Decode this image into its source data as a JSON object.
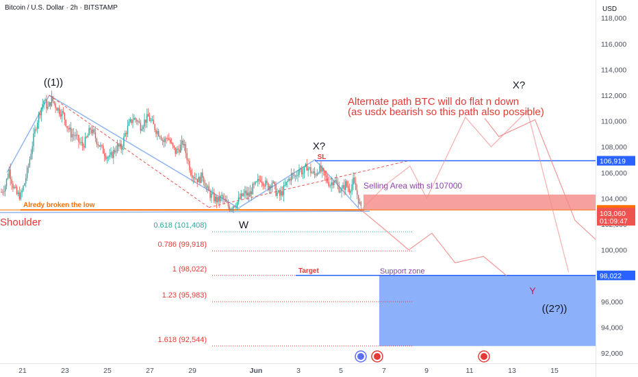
{
  "header": {
    "title": "Bitcoin / U.S. Dollar · 2h · BITSTAMP",
    "currency": "USD"
  },
  "chart_data": {
    "type": "candlestick",
    "symbol": "Bitcoin / U.S. Dollar",
    "interval": "2h",
    "exchange": "BITSTAMP",
    "ylim": [
      91000,
      119000
    ],
    "y_ticks": [
      92000,
      94000,
      96000,
      98000,
      100000,
      102000,
      104000,
      106000,
      108000,
      110000,
      112000,
      114000,
      116000,
      118000
    ],
    "y_tick_labels": [
      "92,000",
      "94,000",
      "96,000",
      "98,000",
      "100,000",
      "102,000",
      "104,000",
      "106,000",
      "108,000",
      "110,000",
      "112,000",
      "114,000",
      "116,000",
      "118,000"
    ],
    "x_tick_labels": [
      "21",
      "23",
      "25",
      "27",
      "29",
      "Jun",
      "3",
      "5",
      "7",
      "9",
      "11",
      "13",
      "15"
    ],
    "close_path": [
      [
        0,
        104500
      ],
      [
        3,
        105000
      ],
      [
        6,
        106200
      ],
      [
        9,
        105000
      ],
      [
        12,
        104300
      ],
      [
        15,
        104200
      ],
      [
        18,
        105200
      ],
      [
        21,
        106500
      ],
      [
        24,
        108200
      ],
      [
        27,
        109700
      ],
      [
        30,
        110800
      ],
      [
        33,
        111600
      ],
      [
        36,
        111000
      ],
      [
        39,
        111700
      ],
      [
        42,
        111200
      ],
      [
        45,
        110800
      ],
      [
        48,
        110500
      ],
      [
        51,
        109600
      ],
      [
        54,
        109000
      ],
      [
        57,
        108900
      ],
      [
        60,
        108400
      ],
      [
        63,
        108100
      ],
      [
        66,
        108600
      ],
      [
        69,
        109400
      ],
      [
        72,
        108900
      ],
      [
        75,
        108300
      ],
      [
        78,
        107800
      ],
      [
        81,
        107400
      ],
      [
        84,
        107100
      ],
      [
        87,
        107600
      ],
      [
        90,
        108000
      ],
      [
        93,
        107900
      ],
      [
        96,
        109000
      ],
      [
        99,
        109700
      ],
      [
        102,
        110200
      ],
      [
        105,
        110100
      ],
      [
        108,
        109600
      ],
      [
        111,
        110000
      ],
      [
        114,
        110300
      ],
      [
        117,
        109800
      ],
      [
        120,
        109300
      ],
      [
        123,
        109000
      ],
      [
        126,
        108400
      ],
      [
        129,
        108800
      ],
      [
        132,
        108100
      ],
      [
        135,
        107600
      ],
      [
        138,
        107900
      ],
      [
        141,
        108300
      ],
      [
        144,
        107200
      ],
      [
        147,
        106100
      ],
      [
        150,
        105700
      ],
      [
        153,
        105400
      ],
      [
        156,
        105800
      ],
      [
        159,
        104800
      ],
      [
        162,
        104300
      ],
      [
        165,
        104000
      ],
      [
        168,
        103800
      ],
      [
        171,
        104100
      ],
      [
        174,
        103600
      ],
      [
        177,
        103300
      ],
      [
        180,
        103500
      ],
      [
        183,
        103700
      ],
      [
        186,
        104100
      ],
      [
        189,
        104400
      ],
      [
        192,
        104200
      ],
      [
        195,
        104800
      ],
      [
        198,
        105100
      ],
      [
        201,
        105600
      ],
      [
        204,
        105200
      ],
      [
        207,
        104900
      ],
      [
        210,
        105300
      ],
      [
        213,
        104500
      ],
      [
        216,
        104200
      ],
      [
        219,
        104700
      ],
      [
        222,
        105300
      ],
      [
        225,
        105800
      ],
      [
        228,
        105700
      ],
      [
        231,
        106300
      ],
      [
        234,
        106000
      ],
      [
        237,
        106500
      ],
      [
        240,
        106100
      ],
      [
        243,
        105800
      ],
      [
        246,
        106300
      ],
      [
        249,
        106000
      ],
      [
        252,
        105500
      ],
      [
        255,
        105100
      ],
      [
        258,
        105500
      ],
      [
        261,
        104900
      ],
      [
        264,
        104600
      ],
      [
        267,
        105100
      ],
      [
        270,
        104700
      ],
      [
        273,
        105300
      ],
      [
        276,
        104300
      ],
      [
        279,
        103100
      ]
    ],
    "annotations": [
      {
        "text": "((1))"
      },
      {
        "text": "X?"
      },
      {
        "text": "SL"
      },
      {
        "text": "X?"
      },
      {
        "text": "W"
      },
      {
        "text": "Shoulder"
      },
      {
        "text": "Alredy broken the low"
      },
      {
        "text": "Alternate path BTC will do flat n down"
      },
      {
        "text": "(as usdx bearish so this path also possible)"
      },
      {
        "text": "Selling Area with sl 107000"
      },
      {
        "text": "Target"
      },
      {
        "text": "Support zone"
      },
      {
        "text": "Y"
      },
      {
        "text": "((2?))"
      }
    ],
    "fib_levels": [
      {
        "label": "0.618 (101,408)",
        "value": 101408,
        "color": "#26a69a"
      },
      {
        "label": "0.786 (99,918)",
        "value": 99918,
        "color": "#e53935"
      },
      {
        "label": "1 (98,022)",
        "value": 98022,
        "color": "#e53935"
      },
      {
        "label": "1.23 (95,983)",
        "value": 95983,
        "color": "#e53935"
      },
      {
        "label": "1.618 (92,544)",
        "value": 92544,
        "color": "#e53935"
      }
    ],
    "horizontal_lines": [
      {
        "value": 106919,
        "label": "106,919",
        "color": "#2962ff"
      },
      {
        "value": 98022,
        "label": "98,022",
        "color": "#2962ff"
      },
      {
        "value": 103104,
        "label": "103,104",
        "color": "#ff6d00"
      }
    ],
    "last_price": {
      "value": 103060,
      "label": "103,060",
      "countdown": "01:09:47",
      "color": "#ef5350"
    },
    "zones": [
      {
        "name": "selling-area",
        "from": 103104,
        "to": 104300,
        "color": "#ef5350"
      },
      {
        "name": "support-zone",
        "from": 92544,
        "to": 98022,
        "color": "#5b8ef6"
      }
    ],
    "alternate_path_1": [
      [
        279,
        103100
      ],
      [
        300,
        105200
      ],
      [
        317,
        106500
      ],
      [
        330,
        104000
      ],
      [
        360,
        110300
      ],
      [
        380,
        108000
      ],
      [
        408,
        110800
      ],
      [
        440,
        98300
      ]
    ],
    "alternate_path_2": [
      [
        279,
        103100
      ],
      [
        296,
        101700
      ],
      [
        316,
        100000
      ],
      [
        334,
        101300
      ],
      [
        352,
        99000
      ],
      [
        374,
        99500
      ],
      [
        392,
        98000
      ]
    ],
    "alternate_path_3": [
      [
        375,
        110200
      ],
      [
        386,
        108800
      ],
      [
        414,
        110100
      ],
      [
        445,
        102300
      ],
      [
        472,
        99800
      ]
    ]
  }
}
